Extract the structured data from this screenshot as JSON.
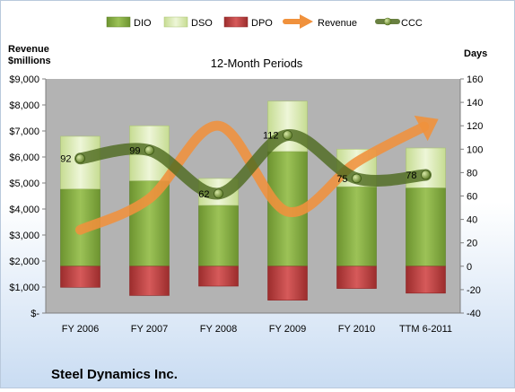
{
  "company_name": "Steel Dynamics Inc.",
  "colors": {
    "dio": "#7ea73a",
    "dso": "#d9e9b1",
    "dpo": "#b93b3b",
    "revenue": "#f0913c",
    "ccc": "#4f6b21",
    "plot_bg": "#b3b3b3"
  },
  "chart_data": {
    "type": "bar",
    "title": "12-Month Periods",
    "categories": [
      "FY 2006",
      "FY 2007",
      "FY 2008",
      "FY 2009",
      "FY 2010",
      "TTM 6-2011"
    ],
    "left_axis": {
      "title_line1": "Revenue",
      "title_line2": "$millions",
      "range": [
        0,
        9000
      ],
      "ticks": [
        0,
        1000,
        2000,
        3000,
        4000,
        5000,
        6000,
        7000,
        8000,
        9000
      ],
      "tick_labels": [
        "$-",
        "$1,000",
        "$2,000",
        "$3,000",
        "$4,000",
        "$5,000",
        "$6,000",
        "$7,000",
        "$8,000",
        "$9,000"
      ]
    },
    "right_axis": {
      "title": "Days",
      "range": [
        -40,
        160
      ],
      "ticks": [
        -40,
        -20,
        0,
        20,
        40,
        60,
        80,
        100,
        120,
        140,
        160
      ],
      "tick_labels": [
        "-40",
        "-20",
        "0",
        "20",
        "40",
        "60",
        "80",
        "100",
        "120",
        "140",
        "160"
      ]
    },
    "series": [
      {
        "name": "DIO",
        "axis": "right",
        "type": "stacked-bar",
        "values": [
          66,
          73,
          52,
          98,
          68,
          67
        ]
      },
      {
        "name": "DSO",
        "axis": "right",
        "type": "stacked-bar",
        "values": [
          45,
          47,
          23,
          43,
          32,
          34
        ]
      },
      {
        "name": "DPO",
        "axis": "right",
        "type": "negative-bar",
        "values": [
          -18,
          -25,
          -17,
          -29,
          -19,
          -23
        ]
      },
      {
        "name": "Revenue",
        "axis": "left",
        "type": "line-arrow",
        "values": [
          3200,
          4400,
          7200,
          3900,
          5800,
          7200
        ]
      },
      {
        "name": "CCC",
        "axis": "right",
        "type": "line-markers",
        "values": [
          92,
          99,
          62,
          112,
          75,
          78
        ],
        "labels": [
          "92",
          "99",
          "62",
          "112",
          "75",
          "78"
        ]
      }
    ],
    "legend_position": "top",
    "grid": false
  }
}
